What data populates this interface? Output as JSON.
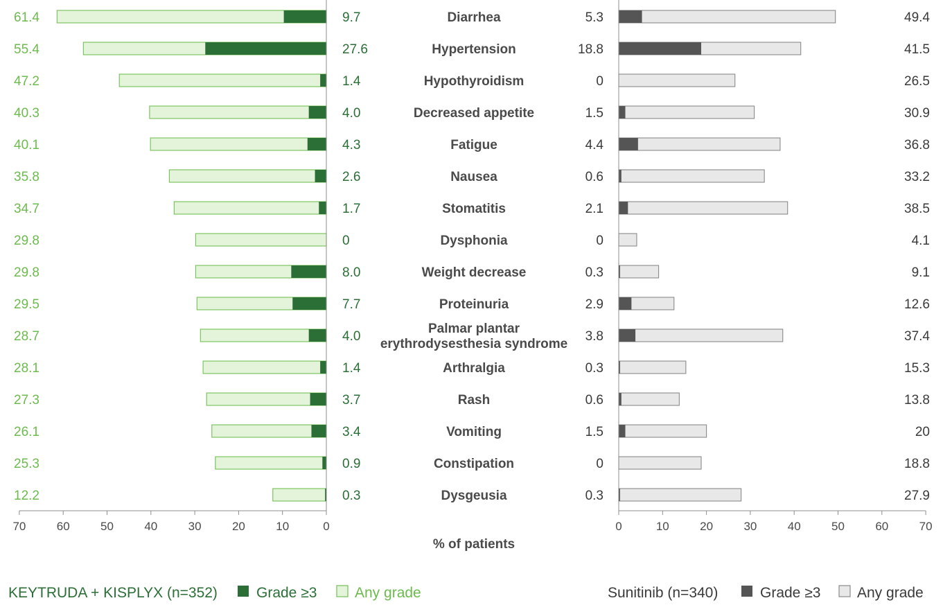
{
  "chart_data": {
    "type": "bar",
    "title": "",
    "xlabel": "% of patients",
    "ylabel": "",
    "xlim": [
      0,
      70
    ],
    "ticks": [
      0,
      10,
      20,
      30,
      40,
      50,
      60,
      70
    ],
    "tick_labels": [
      "0",
      "10",
      "20",
      "30",
      "40",
      "50",
      "60",
      "70"
    ],
    "categories": [
      "Diarrhea",
      "Hypertension",
      "Hypothyroidism",
      "Decreased appetite",
      "Fatigue",
      "Nausea",
      "Stomatitis",
      "Dysphonia",
      "Weight decrease",
      "Proteinuria",
      "Palmar plantar erythrodysesthesia syndrome",
      "Arthralgia",
      "Rash",
      "Vomiting",
      "Constipation",
      "Dysgeusia"
    ],
    "category_lines": [
      [
        "Diarrhea"
      ],
      [
        "Hypertension"
      ],
      [
        "Hypothyroidism"
      ],
      [
        "Decreased appetite"
      ],
      [
        "Fatigue"
      ],
      [
        "Nausea"
      ],
      [
        "Stomatitis"
      ],
      [
        "Dysphonia"
      ],
      [
        "Weight decrease"
      ],
      [
        "Proteinuria"
      ],
      [
        "Palmar plantar",
        "erythrodysesthesia syndrome"
      ],
      [
        "Arthralgia"
      ],
      [
        "Rash"
      ],
      [
        "Vomiting"
      ],
      [
        "Constipation"
      ],
      [
        "Dysgeusia"
      ]
    ],
    "left_panel": {
      "name": "KEYTRUDA + KISPLYX (n=352)",
      "direction": "reversed",
      "series": [
        {
          "name": "Any grade",
          "values": [
            61.4,
            55.4,
            47.2,
            40.3,
            40.1,
            35.8,
            34.7,
            29.8,
            29.8,
            29.5,
            28.7,
            28.1,
            27.3,
            26.1,
            25.3,
            12.2
          ],
          "labels": [
            "61.4",
            "55.4",
            "47.2",
            "40.3",
            "40.1",
            "35.8",
            "34.7",
            "29.8",
            "29.8",
            "29.5",
            "28.7",
            "28.1",
            "27.3",
            "26.1",
            "25.3",
            "12.2"
          ]
        },
        {
          "name": "Grade ≥3",
          "values": [
            9.7,
            27.6,
            1.4,
            4.0,
            4.3,
            2.6,
            1.7,
            0,
            8.0,
            7.7,
            4.0,
            1.4,
            3.7,
            3.4,
            0.9,
            0.3
          ],
          "labels": [
            "9.7",
            "27.6",
            "1.4",
            "4.0",
            "4.3",
            "2.6",
            "1.7",
            "0",
            "8.0",
            "7.7",
            "4.0",
            "1.4",
            "3.7",
            "3.4",
            "0.9",
            "0.3"
          ]
        }
      ]
    },
    "right_panel": {
      "name": "Sunitinib (n=340)",
      "direction": "normal",
      "series": [
        {
          "name": "Any grade",
          "values": [
            49.4,
            41.5,
            26.5,
            30.9,
            36.8,
            33.2,
            38.5,
            4.1,
            9.1,
            12.6,
            37.4,
            15.3,
            13.8,
            20,
            18.8,
            27.9
          ],
          "labels": [
            "49.4",
            "41.5",
            "26.5",
            "30.9",
            "36.8",
            "33.2",
            "38.5",
            "4.1",
            "9.1",
            "12.6",
            "37.4",
            "15.3",
            "13.8",
            "20",
            "18.8",
            "27.9"
          ]
        },
        {
          "name": "Grade ≥3",
          "values": [
            5.3,
            18.8,
            0,
            1.5,
            4.4,
            0.6,
            2.1,
            0,
            0.3,
            2.9,
            3.8,
            0.3,
            0.6,
            1.5,
            0,
            0.3
          ],
          "labels": [
            "5.3",
            "18.8",
            "0",
            "1.5",
            "4.4",
            "0.6",
            "2.1",
            "0",
            "0.3",
            "2.9",
            "3.8",
            "0.3",
            "0.6",
            "1.5",
            "0",
            "0.3"
          ]
        }
      ]
    },
    "legend": {
      "left_title": "KEYTRUDA + KISPLYX (n=352)",
      "right_title": "Sunitinib (n=340)",
      "grade3_label": "Grade ≥3",
      "any_label": "Any grade"
    }
  },
  "colors": {
    "left_any_fill": "#e3f4db",
    "left_any_stroke": "#72bf54",
    "left_grade3": "#2b6e36",
    "left_any_text": "#6dbb4e",
    "left_grade3_text": "#2b6e36",
    "right_any_fill": "#e8e8e8",
    "right_any_stroke": "#8a8a8a",
    "right_grade3": "#555555",
    "right_text": "#3a3a3a",
    "axis": "#8c8c8c",
    "category_text": "#4a4a4a"
  }
}
